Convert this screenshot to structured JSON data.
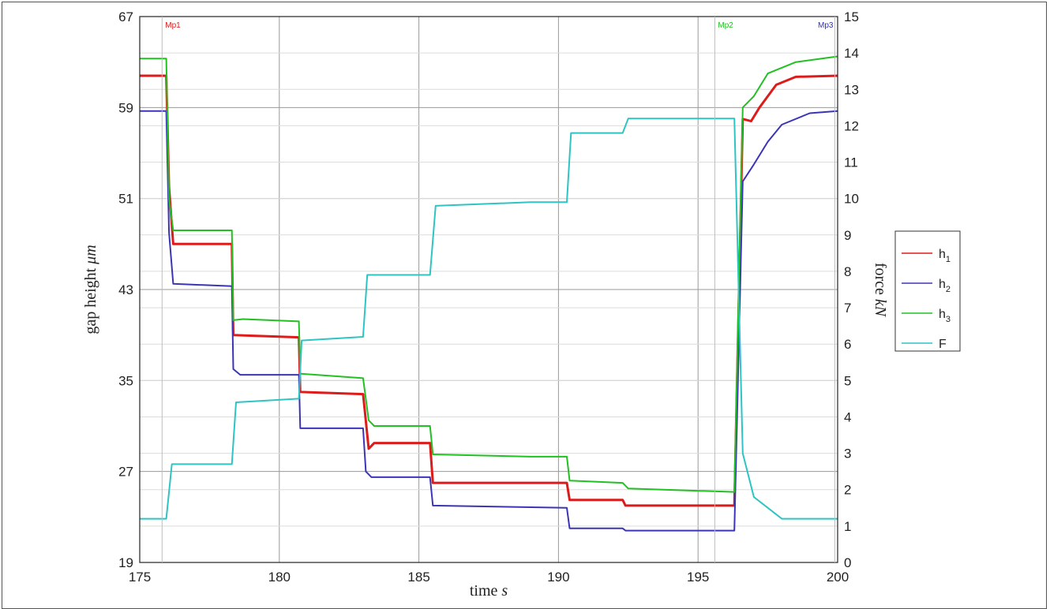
{
  "chart_data": {
    "type": "line",
    "title": "",
    "xlabel": "time s",
    "xlabel_text": "time ",
    "xlabel_unit": "s",
    "ylabel_left": "gap height μm",
    "ylabel_left_text": "gap height ",
    "ylabel_left_unit": "μm",
    "ylabel_right": "force kN",
    "ylabel_right_text": "force ",
    "ylabel_right_unit": "kN",
    "xlim": [
      175,
      200
    ],
    "ylim_left": [
      19,
      67
    ],
    "ylim_right": [
      0,
      15
    ],
    "xticks": [
      "175",
      "180",
      "185",
      "190",
      "195",
      "200"
    ],
    "yticks_left": [
      "19",
      "27",
      "35",
      "43",
      "51",
      "59",
      "67"
    ],
    "yticks_right": [
      "0",
      "1",
      "2",
      "3",
      "4",
      "5",
      "6",
      "7",
      "8",
      "9",
      "10",
      "11",
      "12",
      "13",
      "14",
      "15"
    ],
    "grid": true,
    "legend_position": "right",
    "markers": [
      {
        "label": "Mp1",
        "x": 175.8,
        "color": "#d62020"
      },
      {
        "label": "Mp2",
        "x": 195.6,
        "color": "#22c022"
      },
      {
        "label": "Mp3",
        "x": 199.9,
        "color": "#3030b0"
      }
    ],
    "series": [
      {
        "name": "h1",
        "legend_main": "h",
        "legend_sub": "1",
        "axis": "left",
        "color": "#dd1b1b",
        "points": [
          [
            175,
            61.8
          ],
          [
            175.95,
            61.8
          ],
          [
            176.05,
            52
          ],
          [
            176.2,
            47
          ],
          [
            178.3,
            47
          ],
          [
            178.35,
            39
          ],
          [
            180.7,
            38.8
          ],
          [
            180.75,
            34
          ],
          [
            183,
            33.8
          ],
          [
            183.2,
            29
          ],
          [
            183.4,
            29.5
          ],
          [
            185.4,
            29.5
          ],
          [
            185.5,
            26
          ],
          [
            190.3,
            26
          ],
          [
            190.4,
            24.5
          ],
          [
            192.3,
            24.5
          ],
          [
            192.4,
            24
          ],
          [
            196.3,
            24
          ],
          [
            196.6,
            58
          ],
          [
            196.9,
            57.8
          ],
          [
            197.2,
            59
          ],
          [
            197.8,
            61
          ],
          [
            198.5,
            61.7
          ],
          [
            200,
            61.8
          ]
        ]
      },
      {
        "name": "h2",
        "legend_main": "h",
        "legend_sub": "2",
        "axis": "left",
        "color": "#3b35b5",
        "points": [
          [
            175,
            58.7
          ],
          [
            175.95,
            58.7
          ],
          [
            176.05,
            48
          ],
          [
            176.2,
            43.5
          ],
          [
            178.3,
            43.3
          ],
          [
            178.35,
            36
          ],
          [
            178.6,
            35.5
          ],
          [
            180.7,
            35.5
          ],
          [
            180.75,
            30.8
          ],
          [
            183,
            30.8
          ],
          [
            183.1,
            27
          ],
          [
            183.3,
            26.5
          ],
          [
            185.4,
            26.5
          ],
          [
            185.5,
            24
          ],
          [
            190.3,
            23.8
          ],
          [
            190.4,
            22
          ],
          [
            192.3,
            22
          ],
          [
            192.4,
            21.8
          ],
          [
            196.3,
            21.8
          ],
          [
            196.6,
            52.5
          ],
          [
            197,
            54
          ],
          [
            197.5,
            56
          ],
          [
            198,
            57.5
          ],
          [
            199,
            58.5
          ],
          [
            200,
            58.7
          ]
        ]
      },
      {
        "name": "h3",
        "legend_main": "h",
        "legend_sub": "3",
        "axis": "left",
        "color": "#22c022",
        "points": [
          [
            175,
            63.3
          ],
          [
            175.95,
            63.3
          ],
          [
            176.05,
            51
          ],
          [
            176.2,
            48.2
          ],
          [
            178.3,
            48.2
          ],
          [
            178.35,
            40.3
          ],
          [
            178.7,
            40.4
          ],
          [
            180.7,
            40.2
          ],
          [
            180.75,
            35.6
          ],
          [
            183,
            35.2
          ],
          [
            183.2,
            31.5
          ],
          [
            183.4,
            31
          ],
          [
            185.4,
            31
          ],
          [
            185.5,
            28.5
          ],
          [
            189,
            28.3
          ],
          [
            190.3,
            28.3
          ],
          [
            190.4,
            26.2
          ],
          [
            192.3,
            26
          ],
          [
            192.5,
            25.5
          ],
          [
            196.3,
            25.2
          ],
          [
            196.6,
            59
          ],
          [
            197,
            60
          ],
          [
            197.5,
            62
          ],
          [
            198.5,
            63
          ],
          [
            200,
            63.5
          ]
        ]
      },
      {
        "name": "F",
        "legend_main": "F",
        "legend_sub": "",
        "axis": "right",
        "color": "#2ec4c4",
        "points": [
          [
            175,
            1.2
          ],
          [
            175.95,
            1.2
          ],
          [
            176.15,
            2.7
          ],
          [
            178.3,
            2.7
          ],
          [
            178.45,
            4.4
          ],
          [
            180.7,
            4.5
          ],
          [
            180.8,
            6.1
          ],
          [
            183,
            6.2
          ],
          [
            183.15,
            7.9
          ],
          [
            185.4,
            7.9
          ],
          [
            185.6,
            9.8
          ],
          [
            189,
            9.9
          ],
          [
            190.3,
            9.9
          ],
          [
            190.45,
            11.8
          ],
          [
            192.3,
            11.8
          ],
          [
            192.5,
            12.2
          ],
          [
            196.3,
            12.2
          ],
          [
            196.6,
            3
          ],
          [
            197,
            1.8
          ],
          [
            198,
            1.2
          ],
          [
            200,
            1.2
          ]
        ]
      }
    ]
  }
}
